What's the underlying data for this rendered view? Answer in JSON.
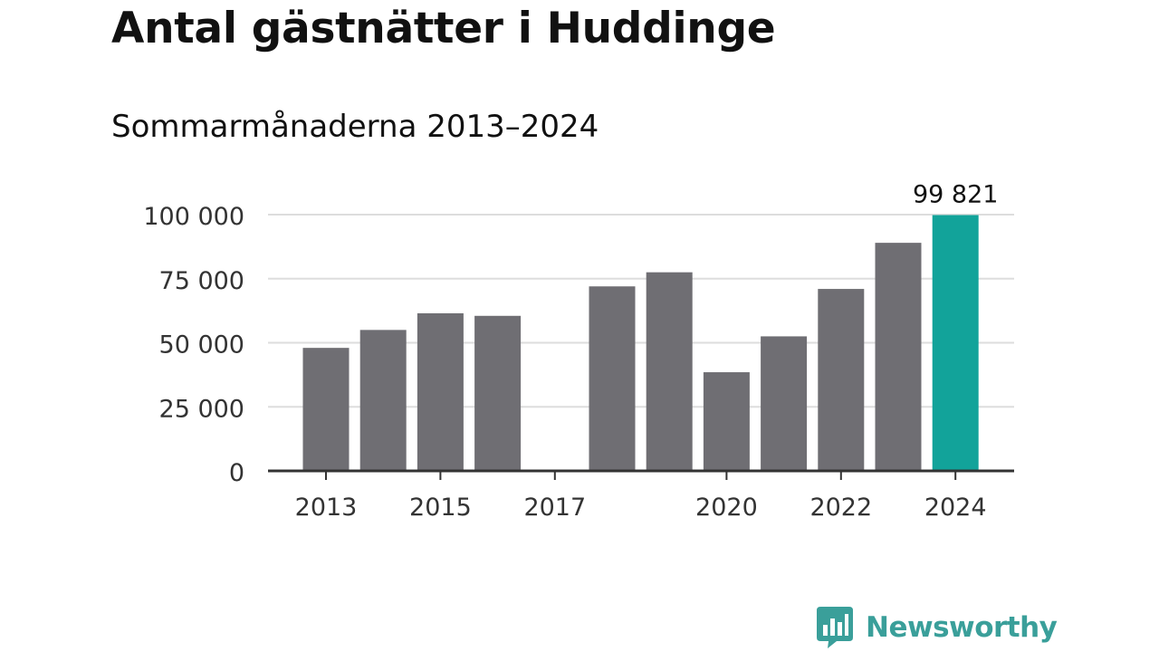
{
  "title": "Antal gästnätter i Huddinge",
  "subtitle": "Sommarmånaderna 2013–2024",
  "brand": {
    "name": "Newsworthy",
    "color": "#3a9f9a"
  },
  "colors": {
    "bar": "#6f6e73",
    "highlight": "#12a39a",
    "grid": "#dddddd",
    "axis": "#333333"
  },
  "chart_data": {
    "type": "bar",
    "title": "Antal gästnätter i Huddinge",
    "subtitle": "Sommarmånaderna 2013–2024",
    "categories": [
      "2013",
      "2014",
      "2015",
      "2016",
      "2017",
      "2018",
      "2019",
      "2020",
      "2021",
      "2022",
      "2023",
      "2024"
    ],
    "values": [
      48000,
      55000,
      61500,
      60500,
      null,
      72000,
      77500,
      38500,
      52500,
      71000,
      89000,
      99821
    ],
    "x_tick_labels": [
      "2013",
      "2015",
      "2017",
      "2020",
      "2022",
      "2024"
    ],
    "y_ticks": [
      0,
      25000,
      50000,
      75000,
      100000
    ],
    "y_tick_labels": [
      "0",
      "25 000",
      "50 000",
      "75 000",
      "100 000"
    ],
    "ylim": [
      0,
      100000
    ],
    "highlight_category": "2024",
    "data_labels": [
      {
        "category": "2024",
        "text": "99 821"
      }
    ],
    "grid": true,
    "legend": false
  }
}
